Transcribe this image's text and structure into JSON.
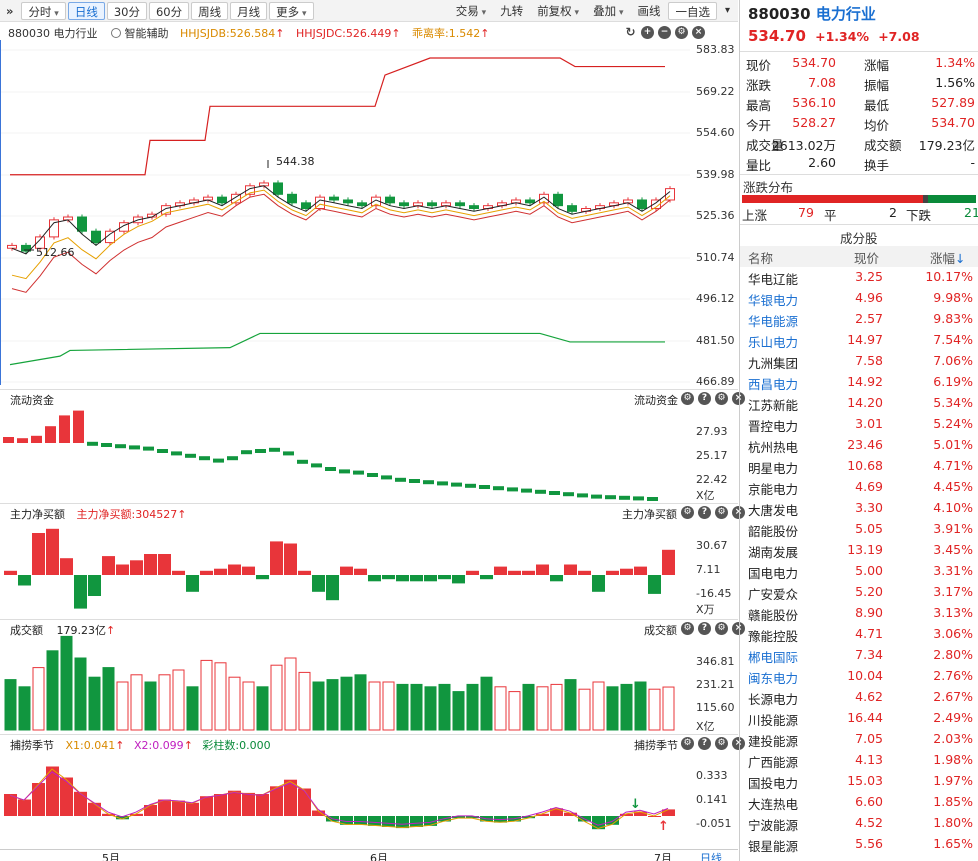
{
  "toolbar": {
    "collapse_icon": "double-chevron-right-icon",
    "periods": [
      "分时",
      "日线",
      "30分",
      "60分",
      "周线",
      "月线",
      "更多"
    ],
    "active_period": "日线",
    "right_buttons": [
      "交易",
      "九转",
      "前复权",
      "叠加",
      "画线",
      "一自选"
    ]
  },
  "main_chart": {
    "code_label": "880030 电力行业",
    "assist_label": "智能辅助",
    "ind1": "HHJSJDB:526.584",
    "ind2": "HHJSJDC:526.449",
    "ind3": "乖离率:1.542",
    "high_label": "544.38",
    "low_label": "512.66",
    "axis": [
      "583.83",
      "569.22",
      "554.60",
      "539.98",
      "525.36",
      "510.74",
      "496.12",
      "481.50",
      "466.89"
    ]
  },
  "flow_panel": {
    "title": "流动资金",
    "right_title": "流动资金",
    "axis": [
      "27.93",
      "25.17",
      "22.42"
    ],
    "unit": "X亿",
    "values": [
      1.5,
      1.4,
      1.6,
      2.4,
      3.3,
      3.7,
      3.6,
      3.5,
      3.4,
      3.3,
      3.2,
      3.0,
      2.8,
      2.6,
      2.4,
      2.2,
      2.4,
      2.9,
      3.0,
      3.1,
      2.8,
      2.1,
      1.8,
      1.5,
      1.3,
      1.2,
      1.0,
      0.8,
      0.6,
      0.5,
      0.4,
      0.3,
      0.2,
      0.1,
      0.0,
      -0.1,
      -0.2,
      -0.3,
      -0.4,
      -0.5,
      -0.6,
      -0.7,
      -0.8,
      -0.85,
      -0.9,
      -0.95,
      -1.0
    ]
  },
  "mainforce_panel": {
    "title": "主力净买额",
    "ind": "主力净买额:304527",
    "right_title": "主力净买额",
    "axis": [
      "30.67",
      "7.11",
      "-16.45"
    ],
    "unit": "X万",
    "values": [
      2,
      -5,
      20,
      22,
      8,
      -16,
      -10,
      9,
      5,
      7,
      10,
      10,
      2,
      -8,
      2,
      3,
      5,
      4,
      -2,
      16,
      15,
      2,
      -8,
      -12,
      4,
      3,
      -3,
      -2,
      -3,
      -3,
      -3,
      -2,
      -4,
      2,
      -2,
      4,
      2,
      2,
      5,
      -3,
      5,
      2,
      -8,
      2,
      3,
      4,
      -9,
      12
    ]
  },
  "volume_panel": {
    "title": "成交额",
    "value": "179.23亿",
    "right_title": "成交额",
    "axis": [
      "346.81",
      "231.21",
      "115.60"
    ],
    "unit": "X亿",
    "bars": [
      [
        210,
        "g"
      ],
      [
        180,
        "g"
      ],
      [
        260,
        "r"
      ],
      [
        330,
        "g"
      ],
      [
        390,
        "g"
      ],
      [
        300,
        "g"
      ],
      [
        220,
        "g"
      ],
      [
        260,
        "g"
      ],
      [
        200,
        "r"
      ],
      [
        230,
        "r"
      ],
      [
        200,
        "g"
      ],
      [
        230,
        "r"
      ],
      [
        250,
        "r"
      ],
      [
        180,
        "g"
      ],
      [
        290,
        "r"
      ],
      [
        280,
        "r"
      ],
      [
        220,
        "r"
      ],
      [
        200,
        "r"
      ],
      [
        180,
        "g"
      ],
      [
        270,
        "r"
      ],
      [
        300,
        "r"
      ],
      [
        240,
        "r"
      ],
      [
        200,
        "g"
      ],
      [
        210,
        "g"
      ],
      [
        220,
        "g"
      ],
      [
        230,
        "g"
      ],
      [
        200,
        "r"
      ],
      [
        200,
        "r"
      ],
      [
        190,
        "g"
      ],
      [
        190,
        "g"
      ],
      [
        180,
        "g"
      ],
      [
        190,
        "g"
      ],
      [
        160,
        "g"
      ],
      [
        190,
        "g"
      ],
      [
        220,
        "g"
      ],
      [
        180,
        "r"
      ],
      [
        160,
        "r"
      ],
      [
        190,
        "g"
      ],
      [
        180,
        "r"
      ],
      [
        190,
        "r"
      ],
      [
        210,
        "g"
      ],
      [
        170,
        "r"
      ],
      [
        200,
        "r"
      ],
      [
        180,
        "g"
      ],
      [
        190,
        "g"
      ],
      [
        200,
        "g"
      ],
      [
        170,
        "r"
      ],
      [
        179,
        "r"
      ]
    ]
  },
  "season_panel": {
    "title": "捕捞季节",
    "x1": "X1:0.041",
    "x2": "X2:0.099",
    "bar_label": "彩柱数:0.000",
    "right_title": "捕捞季节",
    "axis": [
      "0.333",
      "0.141",
      "-0.051"
    ],
    "values": [
      0.2,
      0.15,
      0.3,
      0.45,
      0.35,
      0.22,
      0.12,
      0.02,
      -0.03,
      0.02,
      0.1,
      0.15,
      0.14,
      0.12,
      0.18,
      0.2,
      0.23,
      0.21,
      0.2,
      0.27,
      0.33,
      0.25,
      0.05,
      -0.05,
      -0.08,
      -0.08,
      -0.09,
      -0.1,
      -0.11,
      -0.1,
      -0.09,
      -0.05,
      -0.02,
      -0.02,
      -0.05,
      -0.06,
      -0.05,
      -0.02,
      0.02,
      0.07,
      0.03,
      -0.05,
      -0.12,
      -0.08,
      0.02,
      0.04,
      0.0,
      0.06
    ]
  },
  "x_axis": {
    "labels": [
      "5月",
      "6月",
      "7月"
    ],
    "corner": "日线"
  },
  "quote": {
    "code": "880030",
    "name": "电力行业",
    "price": "534.70",
    "pct": "+1.34%",
    "chg": "+7.08",
    "rows": [
      [
        "现价",
        "534.70",
        "涨幅",
        "1.34%"
      ],
      [
        "涨跌",
        "7.08",
        "振幅",
        "1.56%"
      ],
      [
        "最高",
        "536.10",
        "最低",
        "527.89"
      ],
      [
        "今开",
        "528.27",
        "均价",
        "534.70"
      ],
      [
        "成交量",
        "2613.02万",
        "成交额",
        "179.23亿"
      ],
      [
        "量比",
        "2.60",
        "换手",
        "-"
      ]
    ]
  },
  "distribution": {
    "title": "涨跌分布",
    "up_label": "上涨",
    "up": "79",
    "flat_label": "平",
    "flat": "2",
    "down_label": "下跌",
    "down": "21"
  },
  "components": {
    "title": "成分股",
    "headers": [
      "名称",
      "现价",
      "涨幅"
    ],
    "rows": [
      [
        "华电辽能",
        "3.25",
        "10.17%",
        "n"
      ],
      [
        "华银电力",
        "4.96",
        "9.98%",
        "b"
      ],
      [
        "华电能源",
        "2.57",
        "9.83%",
        "b"
      ],
      [
        "乐山电力",
        "14.97",
        "7.54%",
        "b"
      ],
      [
        "九洲集团",
        "7.58",
        "7.06%",
        "n"
      ],
      [
        "西昌电力",
        "14.92",
        "6.19%",
        "b"
      ],
      [
        "江苏新能",
        "14.20",
        "5.34%",
        "n"
      ],
      [
        "晋控电力",
        "3.01",
        "5.24%",
        "n"
      ],
      [
        "杭州热电",
        "23.46",
        "5.01%",
        "n"
      ],
      [
        "明星电力",
        "10.68",
        "4.71%",
        "n"
      ],
      [
        "京能电力",
        "4.69",
        "4.45%",
        "n"
      ],
      [
        "大唐发电",
        "3.30",
        "4.10%",
        "n"
      ],
      [
        "韶能股份",
        "5.05",
        "3.91%",
        "n"
      ],
      [
        "湖南发展",
        "13.19",
        "3.45%",
        "n"
      ],
      [
        "国电电力",
        "5.00",
        "3.31%",
        "n"
      ],
      [
        "广安爱众",
        "5.20",
        "3.17%",
        "n"
      ],
      [
        "赣能股份",
        "8.90",
        "3.13%",
        "n"
      ],
      [
        "豫能控股",
        "4.71",
        "3.06%",
        "n"
      ],
      [
        "郴电国际",
        "7.34",
        "2.80%",
        "b"
      ],
      [
        "闽东电力",
        "10.04",
        "2.76%",
        "b"
      ],
      [
        "长源电力",
        "4.62",
        "2.67%",
        "n"
      ],
      [
        "川投能源",
        "16.44",
        "2.49%",
        "n"
      ],
      [
        "建投能源",
        "7.05",
        "2.03%",
        "n"
      ],
      [
        "广西能源",
        "4.13",
        "1.98%",
        "n"
      ],
      [
        "国投电力",
        "15.03",
        "1.97%",
        "n"
      ],
      [
        "大连热电",
        "6.60",
        "1.85%",
        "n"
      ],
      [
        "宁波能源",
        "4.52",
        "1.80%",
        "n"
      ],
      [
        "银星能源",
        "5.56",
        "1.65%",
        "n"
      ]
    ]
  }
}
